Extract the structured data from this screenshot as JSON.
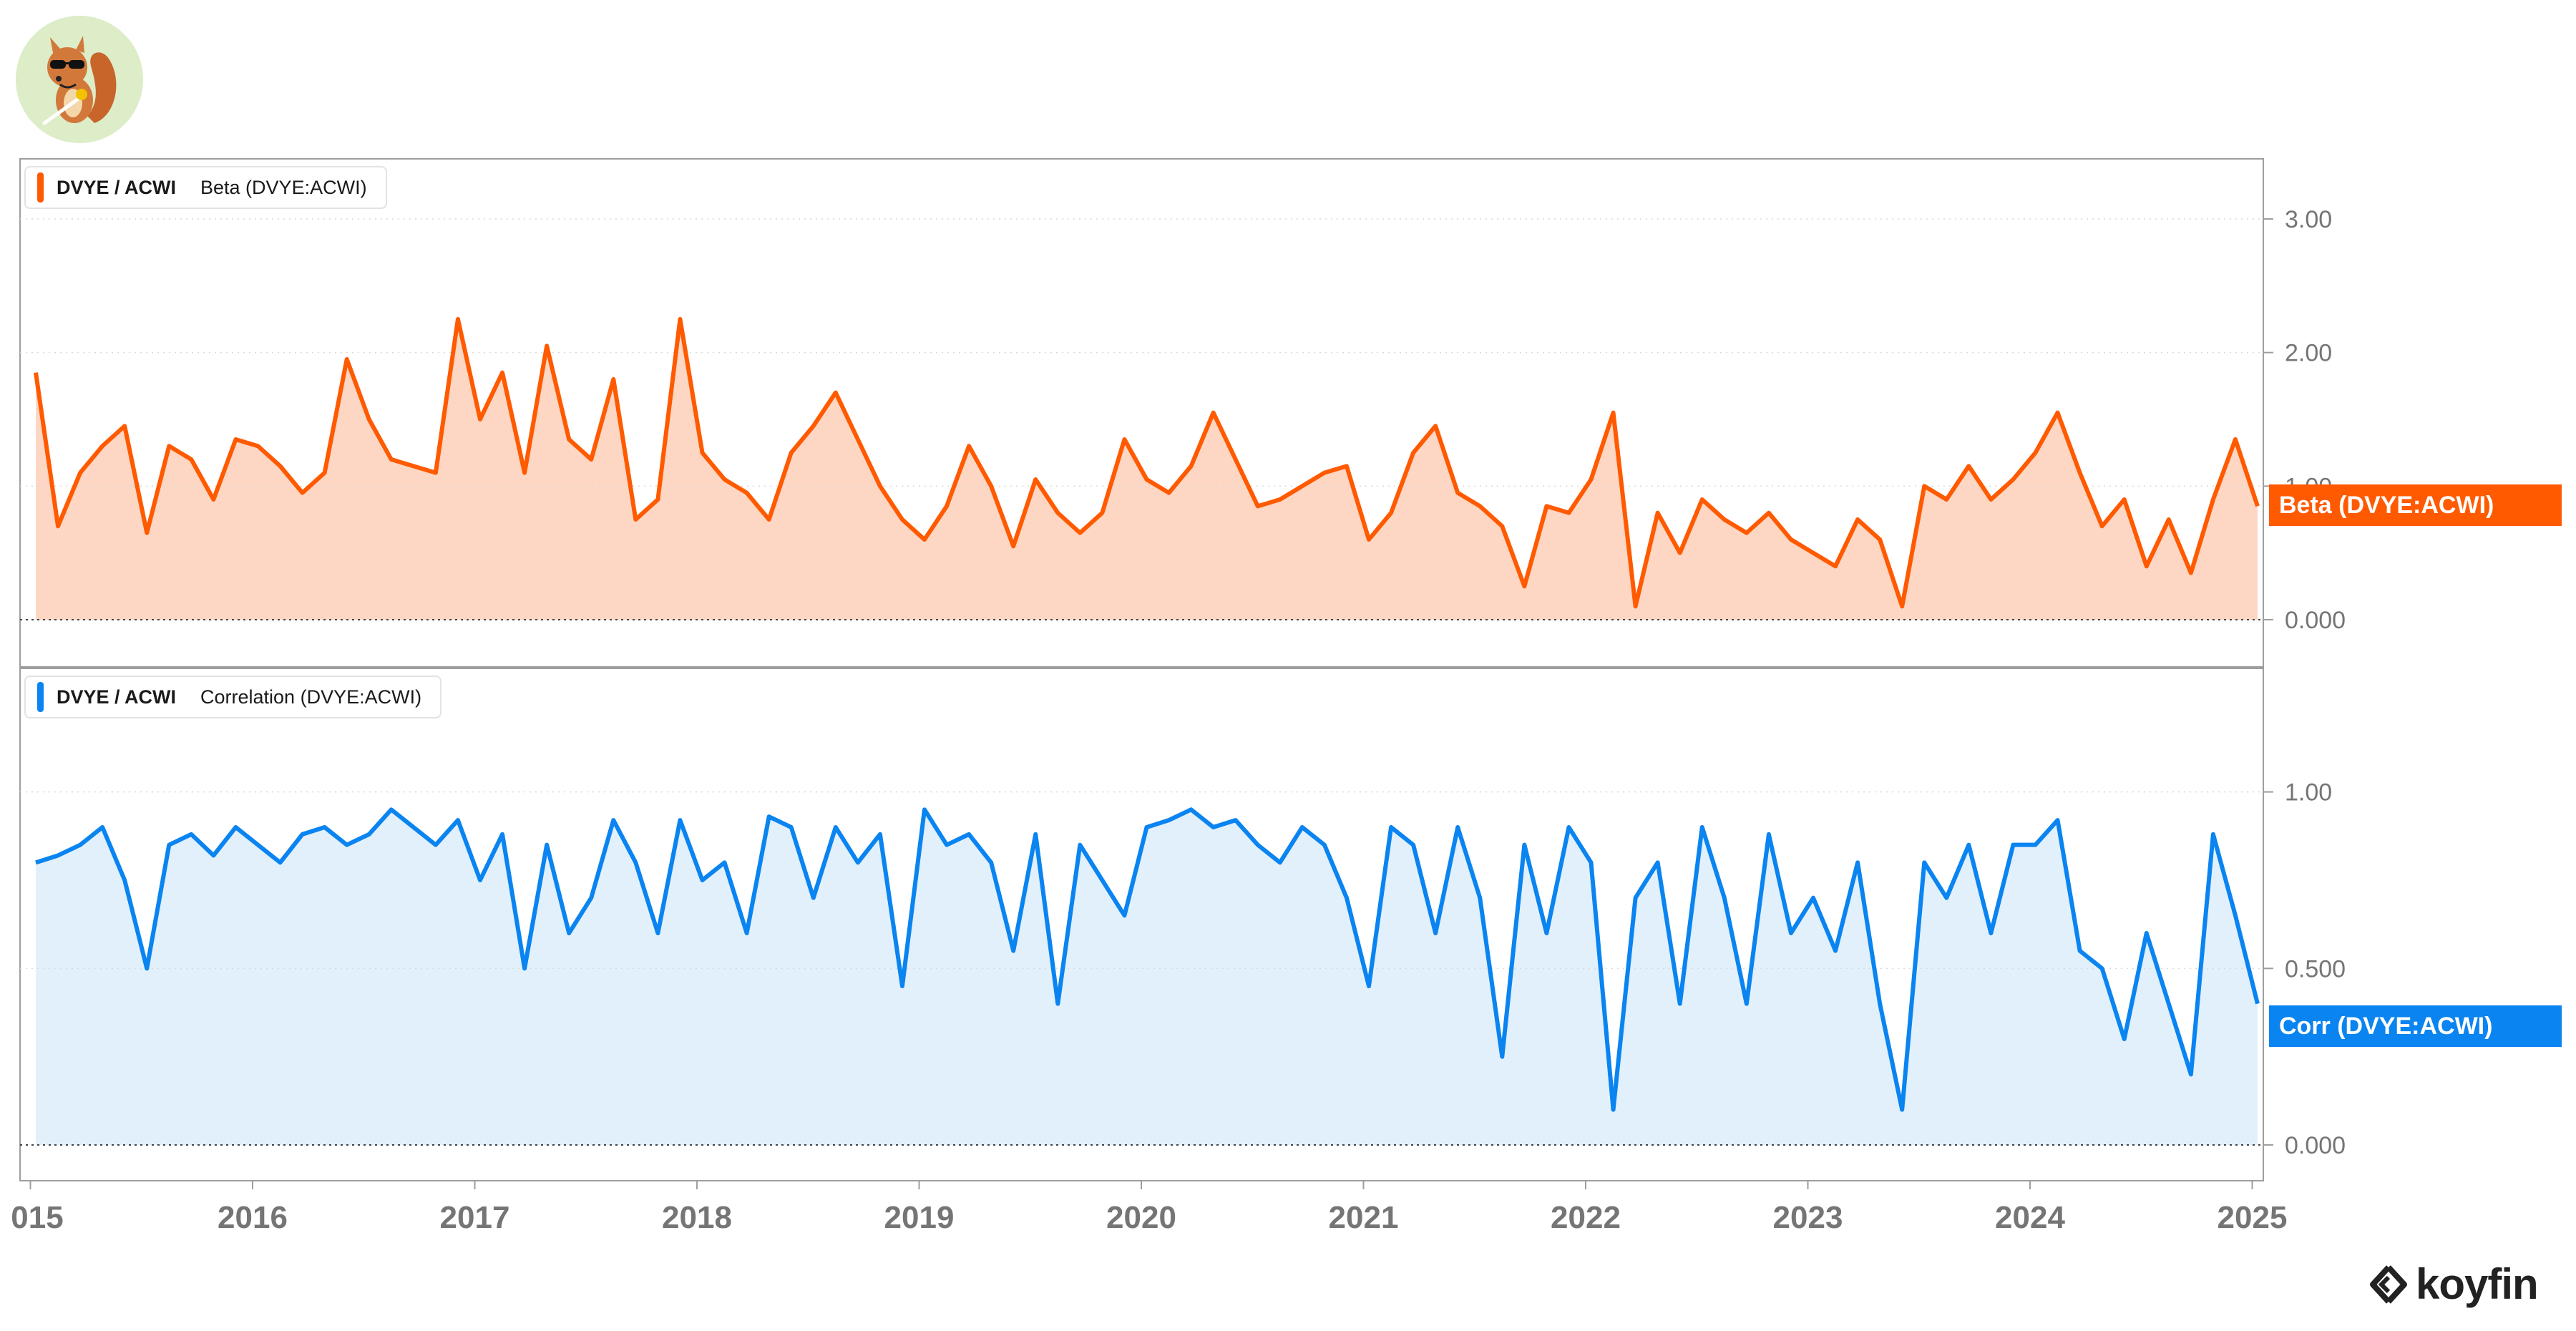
{
  "colors": {
    "beta": "#ff5a00",
    "beta_fill": "#fdd7c4",
    "corr": "#0a84f0",
    "corr_fill": "#e2f0fc",
    "axis_text": "#757575"
  },
  "brand": {
    "name": "koyfin",
    "logo_icon": "koyfin-chevron-icon"
  },
  "avatar": {
    "icon": "squirrel-with-sunglasses-icon"
  },
  "x_axis": {
    "ticks": [
      "015",
      "2016",
      "2017",
      "2018",
      "2019",
      "2020",
      "2021",
      "2022",
      "2023",
      "2024",
      "2025"
    ]
  },
  "chart_data": [
    {
      "type": "area",
      "legend": {
        "ticker": "DVYE / ACWI",
        "series": "Beta (DVYE:ACWI)"
      },
      "end_label": "Beta (DVYE:ACWI)",
      "y_ticks": [
        "3.00",
        "2.00",
        "1.00",
        "0.000"
      ],
      "ylim": [
        0,
        3.45
      ],
      "x": [
        2014.9,
        2015.0,
        2015.1,
        2015.2,
        2015.3,
        2015.4,
        2015.5,
        2015.6,
        2015.7,
        2015.8,
        2015.9,
        2016.0,
        2016.1,
        2016.2,
        2016.3,
        2016.4,
        2016.5,
        2016.6,
        2016.7,
        2016.8,
        2016.9,
        2017.0,
        2017.1,
        2017.2,
        2017.3,
        2017.4,
        2017.5,
        2017.6,
        2017.7,
        2017.8,
        2017.9,
        2018.0,
        2018.1,
        2018.2,
        2018.3,
        2018.4,
        2018.5,
        2018.6,
        2018.7,
        2018.8,
        2018.9,
        2019.0,
        2019.1,
        2019.2,
        2019.3,
        2019.4,
        2019.5,
        2019.6,
        2019.7,
        2019.8,
        2019.9,
        2020.0,
        2020.1,
        2020.2,
        2020.3,
        2020.4,
        2020.5,
        2020.6,
        2020.7,
        2020.8,
        2020.9,
        2021.0,
        2021.1,
        2021.2,
        2021.3,
        2021.4,
        2021.5,
        2021.6,
        2021.7,
        2021.8,
        2021.9,
        2022.0,
        2022.1,
        2022.2,
        2022.3,
        2022.4,
        2022.5,
        2022.6,
        2022.7,
        2022.8,
        2022.9,
        2023.0,
        2023.1,
        2023.2,
        2023.3,
        2023.4,
        2023.5,
        2023.6,
        2023.7,
        2023.8,
        2023.9,
        2024.0,
        2024.1,
        2024.2,
        2024.3,
        2024.4,
        2024.5,
        2024.6,
        2024.7,
        2024.8,
        2024.9
      ],
      "values": [
        1.85,
        0.7,
        1.1,
        1.3,
        1.45,
        0.65,
        1.3,
        1.2,
        0.9,
        1.35,
        1.3,
        1.15,
        0.95,
        1.1,
        1.95,
        1.5,
        1.2,
        1.15,
        1.1,
        2.25,
        1.5,
        1.85,
        1.1,
        2.05,
        1.35,
        1.2,
        1.8,
        0.75,
        0.9,
        2.25,
        1.25,
        1.05,
        0.95,
        0.75,
        1.25,
        1.45,
        1.7,
        1.35,
        1.0,
        0.75,
        0.6,
        0.85,
        1.3,
        1.0,
        0.55,
        1.05,
        0.8,
        0.65,
        0.8,
        1.35,
        1.05,
        0.95,
        1.15,
        1.55,
        1.2,
        0.85,
        0.9,
        1.0,
        1.1,
        1.15,
        0.6,
        0.8,
        1.25,
        1.45,
        0.95,
        0.85,
        0.7,
        0.25,
        0.85,
        0.8,
        1.05,
        1.55,
        0.1,
        0.8,
        0.5,
        0.9,
        0.75,
        0.65,
        0.8,
        0.6,
        0.5,
        0.4,
        0.75,
        0.6,
        0.1,
        1.0,
        0.9,
        1.15,
        0.9,
        1.05,
        1.25,
        1.55,
        1.1,
        0.7,
        0.9,
        0.4,
        0.75,
        0.35,
        0.9,
        1.35,
        0.85
      ]
    },
    {
      "type": "area",
      "legend": {
        "ticker": "DVYE / ACWI",
        "series": "Correlation (DVYE:ACWI)"
      },
      "end_label": "Corr (DVYE:ACWI)",
      "y_ticks": [
        "1.00",
        "0.500",
        "0.000"
      ],
      "ylim": [
        0,
        1.35
      ],
      "x": [
        2014.9,
        2015.0,
        2015.1,
        2015.2,
        2015.3,
        2015.4,
        2015.5,
        2015.6,
        2015.7,
        2015.8,
        2015.9,
        2016.0,
        2016.1,
        2016.2,
        2016.3,
        2016.4,
        2016.5,
        2016.6,
        2016.7,
        2016.8,
        2016.9,
        2017.0,
        2017.1,
        2017.2,
        2017.3,
        2017.4,
        2017.5,
        2017.6,
        2017.7,
        2017.8,
        2017.9,
        2018.0,
        2018.1,
        2018.2,
        2018.3,
        2018.4,
        2018.5,
        2018.6,
        2018.7,
        2018.8,
        2018.9,
        2019.0,
        2019.1,
        2019.2,
        2019.3,
        2019.4,
        2019.5,
        2019.6,
        2019.7,
        2019.8,
        2019.9,
        2020.0,
        2020.1,
        2020.2,
        2020.3,
        2020.4,
        2020.5,
        2020.6,
        2020.7,
        2020.8,
        2020.9,
        2021.0,
        2021.1,
        2021.2,
        2021.3,
        2021.4,
        2021.5,
        2021.6,
        2021.7,
        2021.8,
        2021.9,
        2022.0,
        2022.1,
        2022.2,
        2022.3,
        2022.4,
        2022.5,
        2022.6,
        2022.7,
        2022.8,
        2022.9,
        2023.0,
        2023.1,
        2023.2,
        2023.3,
        2023.4,
        2023.5,
        2023.6,
        2023.7,
        2023.8,
        2023.9,
        2024.0,
        2024.1,
        2024.2,
        2024.3,
        2024.4,
        2024.5,
        2024.6,
        2024.7,
        2024.8,
        2024.9
      ],
      "values": [
        0.8,
        0.82,
        0.85,
        0.9,
        0.75,
        0.5,
        0.85,
        0.88,
        0.82,
        0.9,
        0.85,
        0.8,
        0.88,
        0.9,
        0.85,
        0.88,
        0.95,
        0.9,
        0.85,
        0.92,
        0.75,
        0.88,
        0.5,
        0.85,
        0.6,
        0.7,
        0.92,
        0.8,
        0.6,
        0.92,
        0.75,
        0.8,
        0.6,
        0.93,
        0.9,
        0.7,
        0.9,
        0.8,
        0.88,
        0.45,
        0.95,
        0.85,
        0.88,
        0.8,
        0.55,
        0.88,
        0.4,
        0.85,
        0.75,
        0.65,
        0.9,
        0.92,
        0.95,
        0.9,
        0.92,
        0.85,
        0.8,
        0.9,
        0.85,
        0.7,
        0.45,
        0.9,
        0.85,
        0.6,
        0.9,
        0.7,
        0.25,
        0.85,
        0.6,
        0.9,
        0.8,
        0.1,
        0.7,
        0.8,
        0.4,
        0.9,
        0.7,
        0.4,
        0.88,
        0.6,
        0.7,
        0.55,
        0.8,
        0.4,
        0.1,
        0.8,
        0.7,
        0.85,
        0.6,
        0.85,
        0.85,
        0.92,
        0.55,
        0.5,
        0.3,
        0.6,
        0.4,
        0.2,
        0.88,
        0.65,
        0.4
      ]
    }
  ]
}
